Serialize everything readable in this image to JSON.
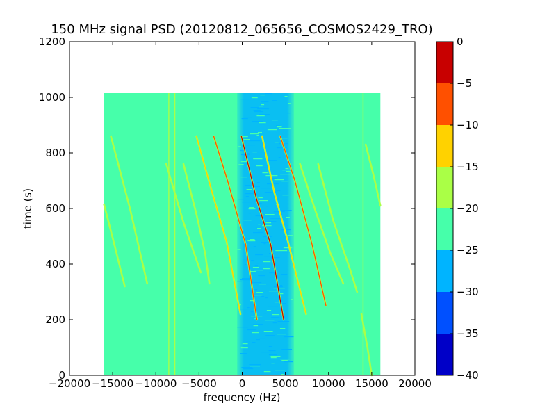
{
  "chart_data": {
    "type": "heatmap",
    "title": "150 MHz signal PSD (20120812_065656_COSMOS2429_TRO)",
    "xlabel": "frequency (Hz)",
    "ylabel": "time (s)",
    "xlim": [
      -20000,
      20000
    ],
    "ylim": [
      0,
      1200
    ],
    "xticks": [
      -20000,
      -15000,
      -10000,
      -5000,
      0,
      5000,
      10000,
      15000,
      20000
    ],
    "xtick_labels": [
      "−20000",
      "−15000",
      "−10000",
      "−5000",
      "0",
      "5000",
      "10000",
      "15000",
      "20000"
    ],
    "yticks": [
      0,
      200,
      400,
      600,
      800,
      1000,
      1200
    ],
    "ytick_labels": [
      "0",
      "200",
      "400",
      "600",
      "800",
      "1000",
      "1200"
    ],
    "grid": false,
    "data_extent": {
      "x": [
        -16000,
        16000
      ],
      "y": [
        0,
        1015
      ]
    },
    "background_level": -22.5,
    "noise_band": {
      "center_hz": 2700,
      "half_width_hz": 3300,
      "level": -27.5
    },
    "traces": [
      {
        "points": [
          [
            -16000,
            615
          ],
          [
            -14800,
            470
          ],
          [
            -13600,
            320
          ]
        ],
        "peak_level": -17
      },
      {
        "points": [
          [
            -15200,
            860
          ],
          [
            -13000,
            600
          ],
          [
            -11000,
            330
          ]
        ],
        "peak_level": -17
      },
      {
        "points": [
          [
            -8800,
            760
          ],
          [
            -6800,
            550
          ],
          [
            -4800,
            370
          ]
        ],
        "peak_level": -17
      },
      {
        "points": [
          [
            -6800,
            760
          ],
          [
            -5300,
            580
          ],
          [
            -4300,
            440
          ],
          [
            -3800,
            330
          ]
        ],
        "peak_level": -17
      },
      {
        "points": [
          [
            -5300,
            860
          ],
          [
            -3500,
            660
          ],
          [
            -1800,
            480
          ],
          [
            -200,
            220
          ]
        ],
        "peak_level": -12
      },
      {
        "points": [
          [
            -3300,
            860
          ],
          [
            -1700,
            700
          ],
          [
            400,
            470
          ],
          [
            1700,
            200
          ]
        ],
        "peak_level": -7
      },
      {
        "points": [
          [
            -100,
            860
          ],
          [
            1600,
            640
          ],
          [
            3300,
            470
          ],
          [
            4800,
            200
          ]
        ],
        "peak_level": -2
      },
      {
        "points": [
          [
            2300,
            860
          ],
          [
            3700,
            660
          ],
          [
            5300,
            480
          ],
          [
            7400,
            220
          ]
        ],
        "peak_level": -12
      },
      {
        "points": [
          [
            4400,
            860
          ],
          [
            6100,
            700
          ],
          [
            8100,
            470
          ],
          [
            9700,
            250
          ]
        ],
        "peak_level": -7
      },
      {
        "points": [
          [
            6700,
            760
          ],
          [
            8500,
            590
          ],
          [
            10200,
            440
          ],
          [
            11700,
            330
          ]
        ],
        "peak_level": -17
      },
      {
        "points": [
          [
            8800,
            760
          ],
          [
            10500,
            560
          ],
          [
            12500,
            380
          ],
          [
            13300,
            300
          ]
        ],
        "peak_level": -17
      },
      {
        "points": [
          [
            14300,
            830
          ],
          [
            15200,
            720
          ],
          [
            16000,
            610
          ]
        ],
        "peak_level": -17
      },
      {
        "points": [
          [
            13800,
            220
          ],
          [
            14500,
            100
          ],
          [
            15000,
            0
          ]
        ],
        "peak_level": -17
      }
    ],
    "vertical_lines": [
      {
        "x": -8500,
        "y_range": [
          0,
          1015
        ],
        "level": -17
      },
      {
        "x": -7800,
        "y_range": [
          0,
          1015
        ],
        "level": -17
      },
      {
        "x": 14000,
        "y_range": [
          0,
          1015
        ],
        "level": -17
      }
    ],
    "colorbar": {
      "levels": [
        -40,
        -35,
        -30,
        -25,
        -20,
        -15,
        -10,
        -5,
        0
      ],
      "tick_labels": [
        "−40",
        "−35",
        "−30",
        "−25",
        "−20",
        "−15",
        "−10",
        "−5",
        "0"
      ],
      "colors": [
        "#0000c8",
        "#0050ff",
        "#00b4ff",
        "#46ffaa",
        "#aaff46",
        "#ffd200",
        "#ff5000",
        "#c80000"
      ]
    }
  }
}
